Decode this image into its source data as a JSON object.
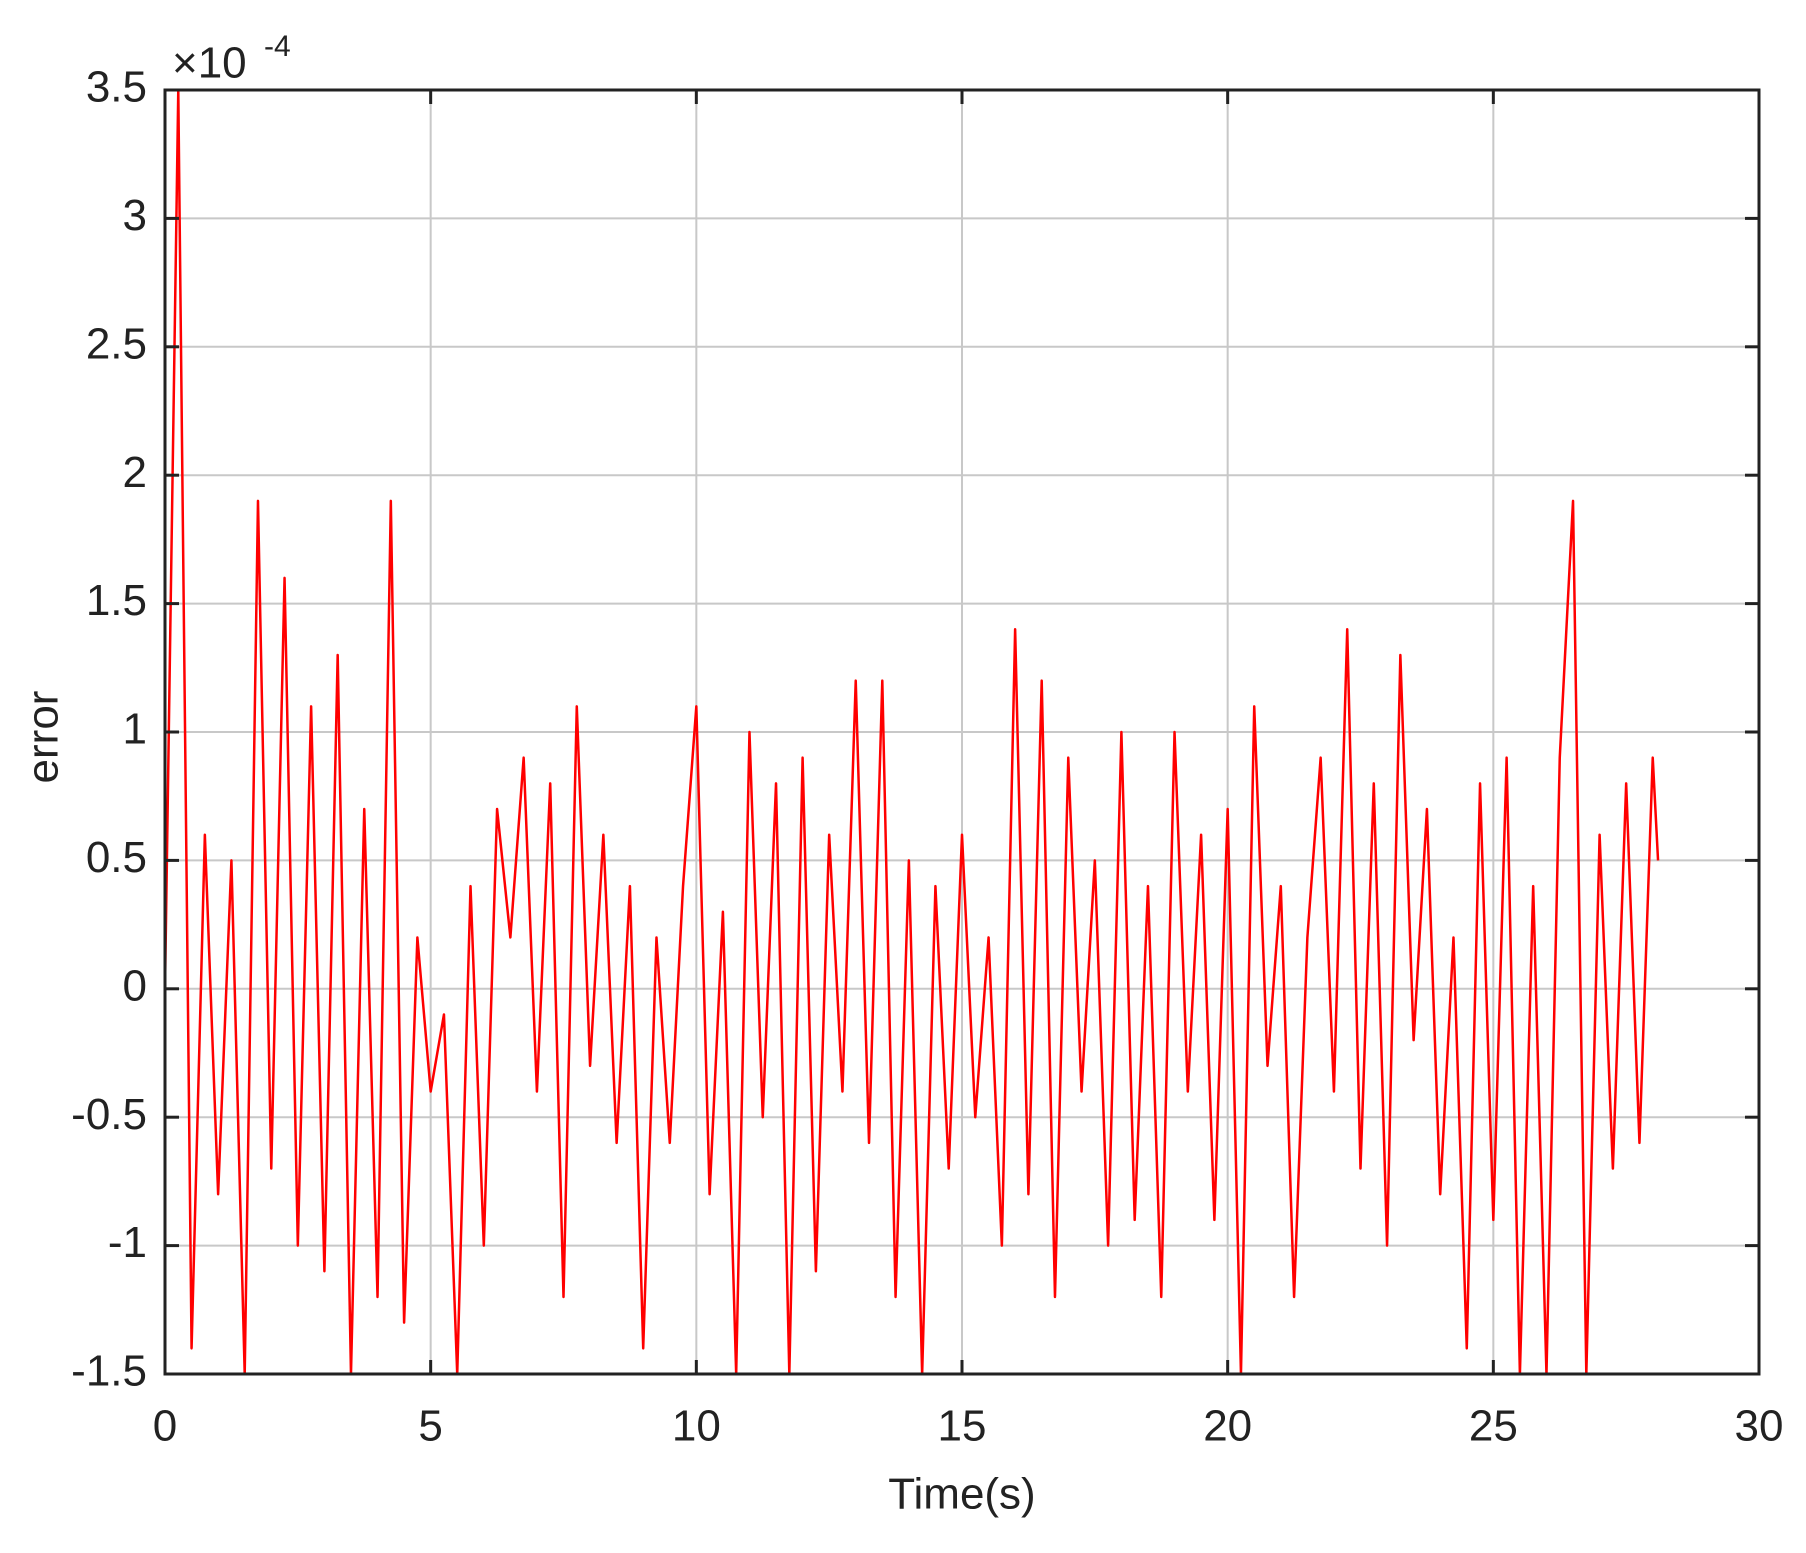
{
  "chart_data": {
    "type": "line",
    "x_label": "Time(s)",
    "y_label": "error",
    "y_scale_base": "×10",
    "y_scale_exponent": "-4",
    "color": "#ff0000",
    "x": [
      0,
      0.25,
      0.5,
      0.75,
      1,
      1.25,
      1.5,
      1.75,
      2,
      2.25,
      2.5,
      2.75,
      3,
      3.25,
      3.5,
      3.75,
      4,
      4.25,
      4.5,
      4.75,
      5,
      5.25,
      5.5,
      5.75,
      6,
      6.25,
      6.5,
      6.75,
      7,
      7.25,
      7.5,
      7.75,
      8,
      8.25,
      8.5,
      8.75,
      9,
      9.25,
      9.5,
      9.75,
      10,
      10.25,
      10.5,
      10.75,
      11,
      11.25,
      11.5,
      11.75,
      12,
      12.25,
      12.5,
      12.75,
      13,
      13.25,
      13.5,
      13.75,
      14,
      14.25,
      14.5,
      14.75,
      15,
      15.25,
      15.5,
      15.75,
      16,
      16.25,
      16.5,
      16.75,
      17,
      17.25,
      17.5,
      17.75,
      18,
      18.25,
      18.5,
      18.75,
      19,
      19.25,
      19.5,
      19.75,
      20,
      20.25,
      20.5,
      20.75,
      21,
      21.25,
      21.5,
      21.75,
      22,
      22.25,
      22.5,
      22.75,
      23,
      23.25,
      23.5,
      23.75,
      24,
      24.25,
      24.5,
      24.75,
      25,
      25.25,
      25.5,
      25.75,
      26,
      26.25,
      26.5,
      26.75,
      27,
      27.25,
      27.5,
      27.75,
      28,
      28.1
    ],
    "values": [
      0,
      3.5,
      -1.4,
      0.6,
      -0.8,
      0.5,
      -1.5,
      1.9,
      -0.7,
      1.6,
      -1.0,
      1.1,
      -1.1,
      1.3,
      -1.5,
      0.7,
      -1.2,
      1.9,
      -1.3,
      0.2,
      -0.4,
      -0.1,
      -1.5,
      0.4,
      -1.0,
      0.7,
      0.2,
      0.9,
      -0.4,
      0.8,
      -1.2,
      1.1,
      -0.3,
      0.6,
      -0.6,
      0.4,
      -1.4,
      0.2,
      -0.6,
      0.4,
      1.1,
      -0.8,
      0.3,
      -1.5,
      1.0,
      -0.5,
      0.8,
      -1.5,
      0.9,
      -1.1,
      0.6,
      -0.4,
      1.2,
      -0.6,
      1.2,
      -1.2,
      0.5,
      -1.5,
      0.4,
      -0.7,
      0.6,
      -0.5,
      0.2,
      -1.0,
      1.4,
      -0.8,
      1.2,
      -1.2,
      0.9,
      -0.4,
      0.5,
      -1.0,
      1.0,
      -0.9,
      0.4,
      -1.2,
      1.0,
      -0.4,
      0.6,
      -0.9,
      0.7,
      -1.5,
      1.1,
      -0.3,
      0.4,
      -1.2,
      0.2,
      0.9,
      -0.4,
      1.4,
      -0.7,
      0.8,
      -1.0,
      1.3,
      -0.2,
      0.7,
      -0.8,
      0.2,
      -1.4,
      0.8,
      -0.9,
      0.9,
      -1.5,
      0.4,
      -1.5,
      0.9,
      1.9,
      -1.5,
      0.6,
      -0.7,
      0.8,
      -0.6,
      0.9,
      0.5
    ],
    "xlim": [
      0,
      30
    ],
    "xticks": [
      0,
      5,
      10,
      15,
      20,
      25,
      30
    ],
    "ylim": [
      -1.5,
      3.5
    ],
    "yticks": [
      -1.5,
      -1,
      -0.5,
      0,
      0.5,
      1,
      1.5,
      2,
      2.5,
      3,
      3.5
    ],
    "grid": true
  }
}
